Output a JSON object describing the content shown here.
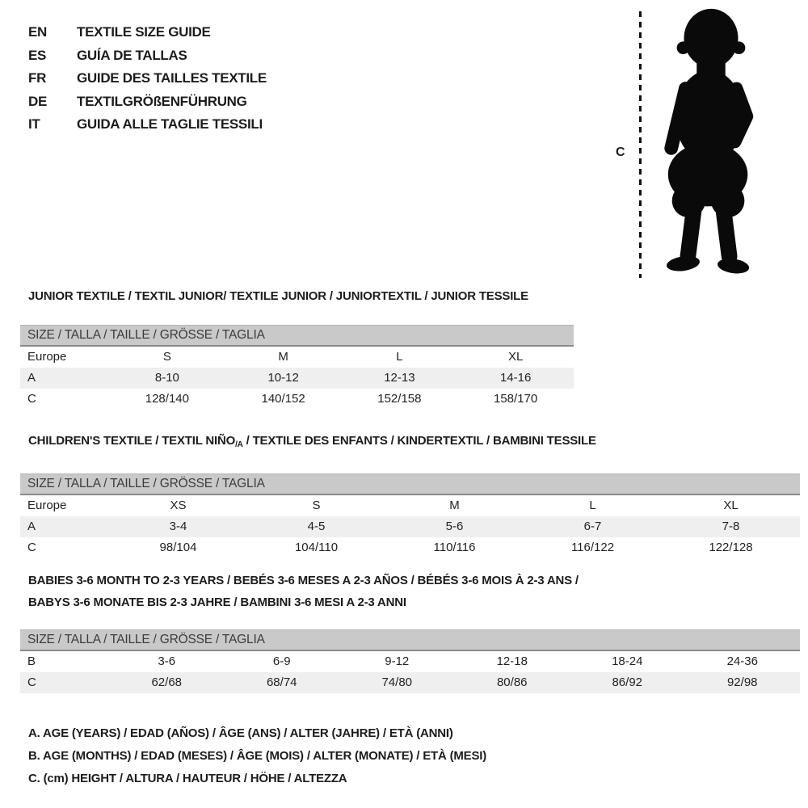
{
  "languages": [
    {
      "code": "EN",
      "title": "TEXTILE SIZE GUIDE"
    },
    {
      "code": "ES",
      "title": "GUÍA DE TALLAS"
    },
    {
      "code": "FR",
      "title": "GUIDE DES TAILLES TEXTILE"
    },
    {
      "code": "DE",
      "title": "TEXTILGRÖßENFÜHRUNG"
    },
    {
      "code": "IT",
      "title": "GUIDA ALLE TAGLIE TESSILI"
    }
  ],
  "figure": {
    "icon": "toddler-silhouette",
    "height_label": "C"
  },
  "tables": [
    {
      "title_lines": [
        "JUNIOR TEXTILE / TEXTIL JUNIOR/ TEXTILE JUNIOR / JUNIORTEXTIL / JUNIOR TESSILE"
      ],
      "size_header": "SIZE / TALLA / TAILLE / GRÖSSE / TAGLIA",
      "rows": [
        {
          "label": "Europe",
          "values": [
            "S",
            "M",
            "L",
            "XL"
          ],
          "shaded": false
        },
        {
          "label": "A",
          "values": [
            "8-10",
            "10-12",
            "12-13",
            "14-16"
          ],
          "shaded": true
        },
        {
          "label": "C",
          "values": [
            "128/140",
            "140/152",
            "152/158",
            "158/170"
          ],
          "shaded": false
        }
      ]
    },
    {
      "title_parts": {
        "prefix": "CHILDREN'S TEXTILE / TEXTIL NIÑO",
        "sub": "/A",
        "suffix": " / TEXTILE DES ENFANTS / KINDERTEXTIL / BAMBINI TESSILE"
      },
      "size_header": "SIZE / TALLA / TAILLE / GRÖSSE / TAGLIA",
      "rows": [
        {
          "label": "Europe",
          "values": [
            "XS",
            "S",
            "M",
            "L",
            "XL"
          ],
          "shaded": false
        },
        {
          "label": "A",
          "values": [
            "3-4",
            "4-5",
            "5-6",
            "6-7",
            "7-8"
          ],
          "shaded": true
        },
        {
          "label": "C",
          "values": [
            "98/104",
            "104/110",
            "110/116",
            "116/122",
            "122/128"
          ],
          "shaded": false
        }
      ]
    },
    {
      "title_lines": [
        "BABIES 3-6 MONTH TO 2-3 YEARS / BEBÉS 3-6 MESES A 2-3 AÑOS / BÉBÉS 3-6 MOIS À 2-3 ANS /",
        "BABYS 3-6 MONATE BIS 2-3 JAHRE / BAMBINI 3-6 MESI A 2-3 ANNI"
      ],
      "size_header": "SIZE / TALLA / TAILLE / GRÖSSE / TAGLIA",
      "rows": [
        {
          "label": "B",
          "values": [
            "3-6",
            "6-9",
            "9-12",
            "12-18",
            "18-24",
            "24-36"
          ],
          "shaded": false
        },
        {
          "label": "C",
          "values": [
            "62/68",
            "68/74",
            "74/80",
            "80/86",
            "86/92",
            "92/98"
          ],
          "shaded": true
        }
      ]
    }
  ],
  "footnotes": [
    "A. AGE (YEARS) / EDAD (AÑOS) / ÂGE (ANS) / ALTER (JAHRE) / ETÀ (ANNI)",
    "B. AGE (MONTHS) / EDAD (MESES) / ÂGE (MOIS) / ALTER (MONATE) / ETÀ (MESI)",
    "C. (cm) HEIGHT / ALTURA / HAUTEUR / HÖHE / ALTEZZA"
  ],
  "colors": {
    "size_bar": "#c9c9c9",
    "size_bar_border": "#8a8a8a",
    "shaded_row": "#efefef",
    "text": "#1c1c1c",
    "silhouette": "#0a0a0a"
  }
}
